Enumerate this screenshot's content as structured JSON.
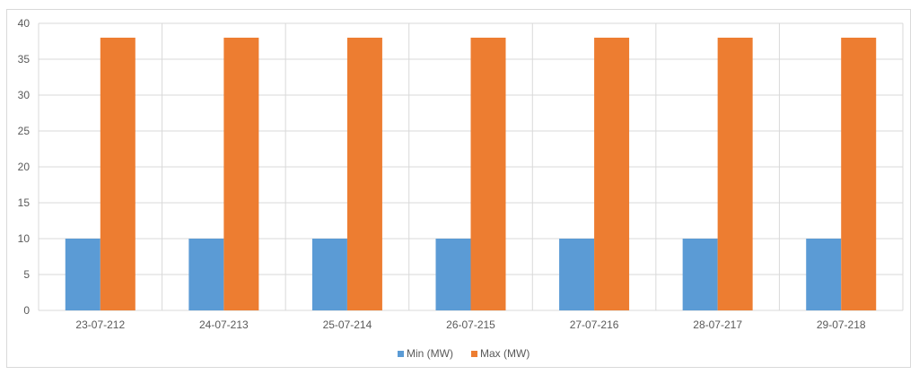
{
  "chart_data": {
    "type": "bar",
    "title": "",
    "xlabel": "",
    "ylabel": "",
    "categories": [
      "23-07-212",
      "24-07-213",
      "25-07-214",
      "26-07-215",
      "27-07-216",
      "28-07-217",
      "29-07-218"
    ],
    "series": [
      {
        "name": "Min (MW)",
        "values": [
          10,
          10,
          10,
          10,
          10,
          10,
          10
        ],
        "color": "#5b9bd5"
      },
      {
        "name": "Max (MW)",
        "values": [
          38,
          38,
          38,
          38,
          38,
          38,
          38
        ],
        "color": "#ed7d31"
      }
    ],
    "ylim": [
      0,
      40
    ],
    "yticks": [
      0,
      5,
      10,
      15,
      20,
      25,
      30,
      35,
      40
    ],
    "grid": true,
    "legend": "bottom-center"
  }
}
